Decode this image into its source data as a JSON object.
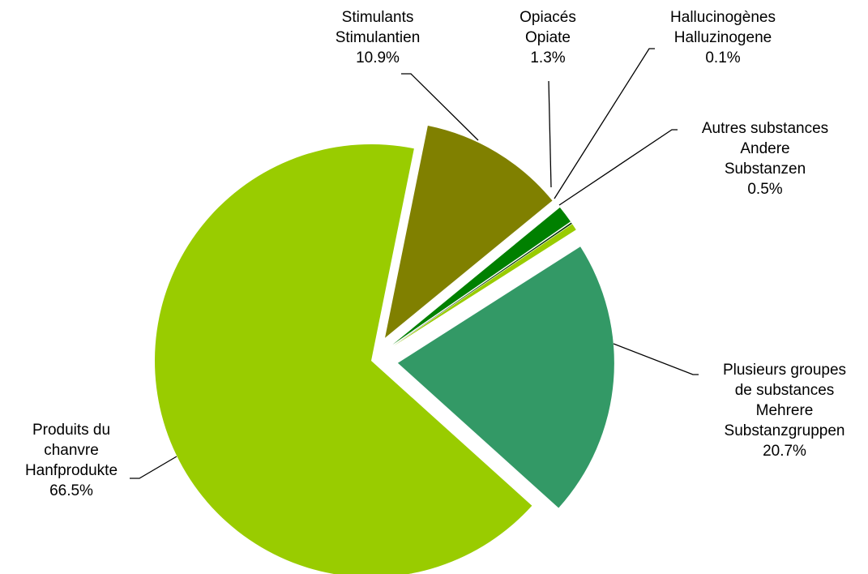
{
  "chart_data": {
    "type": "pie",
    "title": "",
    "slices": [
      {
        "lines": [
          "Plusieurs groupes",
          "de substances",
          "Mehrere",
          "Substanzgruppen"
        ],
        "value": 20.7,
        "value_label": "20.7%",
        "color": "#339966",
        "exploded": true
      },
      {
        "lines": [
          "Produits du",
          "chanvre",
          "Hanfprodukte"
        ],
        "value": 66.5,
        "value_label": "66.5%",
        "color": "#99cc00",
        "exploded": false
      },
      {
        "lines": [
          "Stimulants",
          "Stimulantien"
        ],
        "value": 10.9,
        "value_label": "10.9%",
        "color": "#808000",
        "exploded": true
      },
      {
        "lines": [
          "Opiacés",
          "Opiate"
        ],
        "value": 1.3,
        "value_label": "1.3%",
        "color": "#008000",
        "exploded": true
      },
      {
        "lines": [
          "Hallucinogènes",
          "Halluzinogene"
        ],
        "value": 0.1,
        "value_label": "0.1%",
        "color": "#003300",
        "exploded": true
      },
      {
        "lines": [
          "Autres substances",
          "Andere",
          "Substanzen"
        ],
        "value": 0.5,
        "value_label": "0.5%",
        "color": "#99cc00",
        "exploded": true
      }
    ]
  }
}
